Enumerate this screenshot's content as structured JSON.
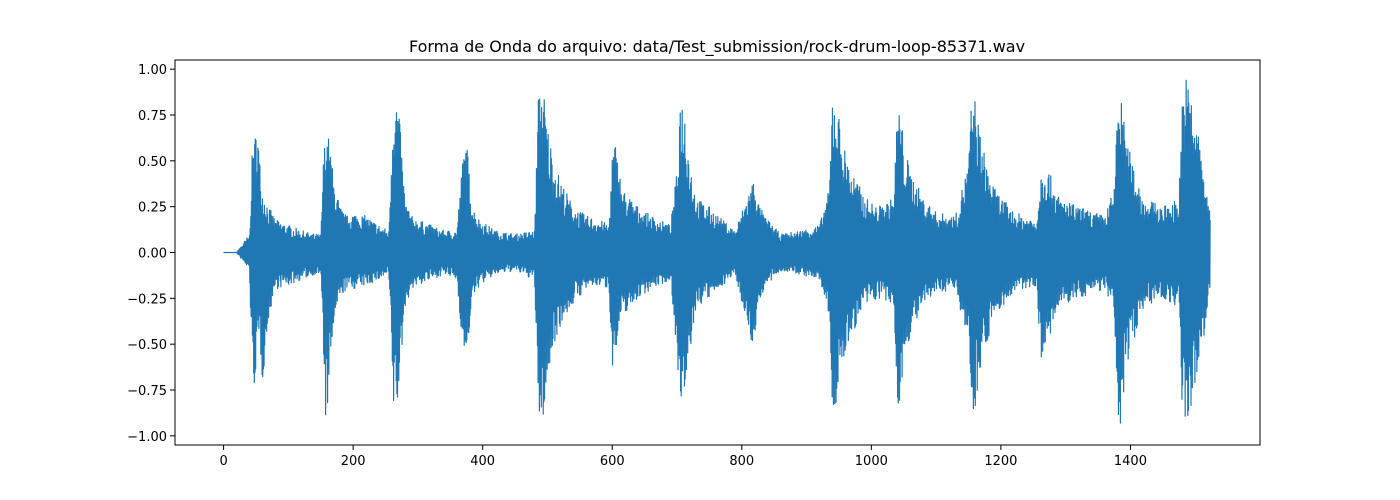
{
  "chart_data": {
    "type": "line",
    "title": "Forma de Onda do arquivo: data/Test_submission/rock-drum-loop-85371.wav",
    "xlabel": "",
    "ylabel": "",
    "xlim": [
      -75,
      1600
    ],
    "ylim": [
      -1.05,
      1.05
    ],
    "xticks": [
      0,
      200,
      400,
      600,
      800,
      1000,
      1200,
      1400
    ],
    "yticks": [
      -1.0,
      -0.75,
      -0.5,
      -0.25,
      0.0,
      0.25,
      0.5,
      0.75,
      1.0
    ],
    "ytick_labels": [
      "−1.00",
      "−0.75",
      "−0.50",
      "−0.25",
      "0.00",
      "0.25",
      "0.50",
      "0.75",
      "1.00"
    ],
    "grid": false,
    "line_color": "#1f77b4",
    "x_range": [
      0,
      1523
    ],
    "series": [
      {
        "amplitude_envelope": {
          "x": [
            0,
            20,
            40,
            43,
            46,
            48,
            52,
            56,
            60,
            70,
            80,
            100,
            120,
            140,
            150,
            154,
            158,
            164,
            170,
            180,
            190,
            200,
            220,
            240,
            255,
            262,
            266,
            270,
            274,
            280,
            290,
            300,
            320,
            340,
            360,
            370,
            375,
            380,
            385,
            395,
            420,
            450,
            480,
            486,
            490,
            494,
            500,
            510,
            520,
            540,
            560,
            580,
            595,
            600,
            605,
            615,
            640,
            660,
            690,
            700,
            705,
            712,
            720,
            730,
            750,
            770,
            790,
            815,
            820,
            825,
            835,
            860,
            890,
            920,
            935,
            940,
            946,
            952,
            960,
            970,
            990,
            1010,
            1035,
            1040,
            1045,
            1050,
            1060,
            1080,
            1100,
            1130,
            1150,
            1155,
            1160,
            1170,
            1190,
            1220,
            1255,
            1262,
            1268,
            1290,
            1320,
            1360,
            1375,
            1380,
            1385,
            1395,
            1420,
            1450,
            1475,
            1480,
            1486,
            1495,
            1510,
            1523
          ],
          "upper": [
            0.0,
            0.0,
            0.1,
            0.45,
            0.68,
            0.62,
            0.75,
            0.5,
            0.35,
            0.25,
            0.18,
            0.15,
            0.12,
            0.1,
            0.1,
            0.5,
            0.7,
            0.6,
            0.4,
            0.25,
            0.2,
            0.22,
            0.2,
            0.15,
            0.12,
            0.87,
            0.87,
            0.82,
            0.6,
            0.3,
            0.2,
            0.18,
            0.15,
            0.12,
            0.12,
            0.55,
            0.62,
            0.4,
            0.25,
            0.18,
            0.12,
            0.1,
            0.12,
            0.85,
            0.95,
            0.9,
            0.7,
            0.5,
            0.4,
            0.25,
            0.2,
            0.18,
            0.15,
            0.55,
            0.6,
            0.35,
            0.25,
            0.2,
            0.15,
            0.45,
            0.88,
            0.8,
            0.5,
            0.3,
            0.25,
            0.18,
            0.12,
            0.38,
            0.42,
            0.28,
            0.2,
            0.1,
            0.12,
            0.15,
            0.35,
            0.9,
            0.85,
            0.7,
            0.55,
            0.45,
            0.3,
            0.25,
            0.3,
            0.82,
            0.8,
            0.6,
            0.45,
            0.3,
            0.22,
            0.2,
            0.5,
            0.87,
            0.85,
            0.6,
            0.35,
            0.22,
            0.18,
            0.45,
            0.5,
            0.3,
            0.25,
            0.2,
            0.35,
            0.92,
            0.85,
            0.6,
            0.3,
            0.25,
            0.3,
            0.9,
            0.96,
            0.85,
            0.55,
            0.2
          ],
          "lower": [
            0.0,
            0.0,
            -0.1,
            -0.55,
            -0.84,
            -0.7,
            -0.6,
            -0.5,
            -0.72,
            -0.35,
            -0.2,
            -0.18,
            -0.15,
            -0.12,
            -0.12,
            -0.55,
            -0.97,
            -0.7,
            -0.4,
            -0.25,
            -0.2,
            -0.2,
            -0.18,
            -0.15,
            -0.12,
            -0.87,
            -0.87,
            -0.82,
            -0.6,
            -0.3,
            -0.2,
            -0.18,
            -0.15,
            -0.12,
            -0.15,
            -0.55,
            -0.62,
            -0.4,
            -0.25,
            -0.18,
            -0.12,
            -0.1,
            -0.15,
            -0.9,
            -0.96,
            -0.9,
            -0.72,
            -0.5,
            -0.4,
            -0.28,
            -0.2,
            -0.18,
            -0.2,
            -0.62,
            -0.58,
            -0.35,
            -0.25,
            -0.2,
            -0.15,
            -0.55,
            -0.87,
            -0.85,
            -0.55,
            -0.3,
            -0.25,
            -0.18,
            -0.12,
            -0.5,
            -0.48,
            -0.28,
            -0.2,
            -0.1,
            -0.12,
            -0.15,
            -0.35,
            -0.87,
            -0.85,
            -0.7,
            -0.55,
            -0.45,
            -0.3,
            -0.25,
            -0.3,
            -0.85,
            -0.82,
            -0.6,
            -0.45,
            -0.3,
            -0.22,
            -0.2,
            -0.5,
            -0.87,
            -0.85,
            -0.6,
            -0.35,
            -0.22,
            -0.18,
            -0.6,
            -0.55,
            -0.3,
            -0.25,
            -0.2,
            -0.35,
            -0.93,
            -0.96,
            -0.6,
            -0.3,
            -0.25,
            -0.3,
            -0.96,
            -0.96,
            -0.85,
            -0.55,
            -0.2
          ]
        }
      }
    ]
  }
}
